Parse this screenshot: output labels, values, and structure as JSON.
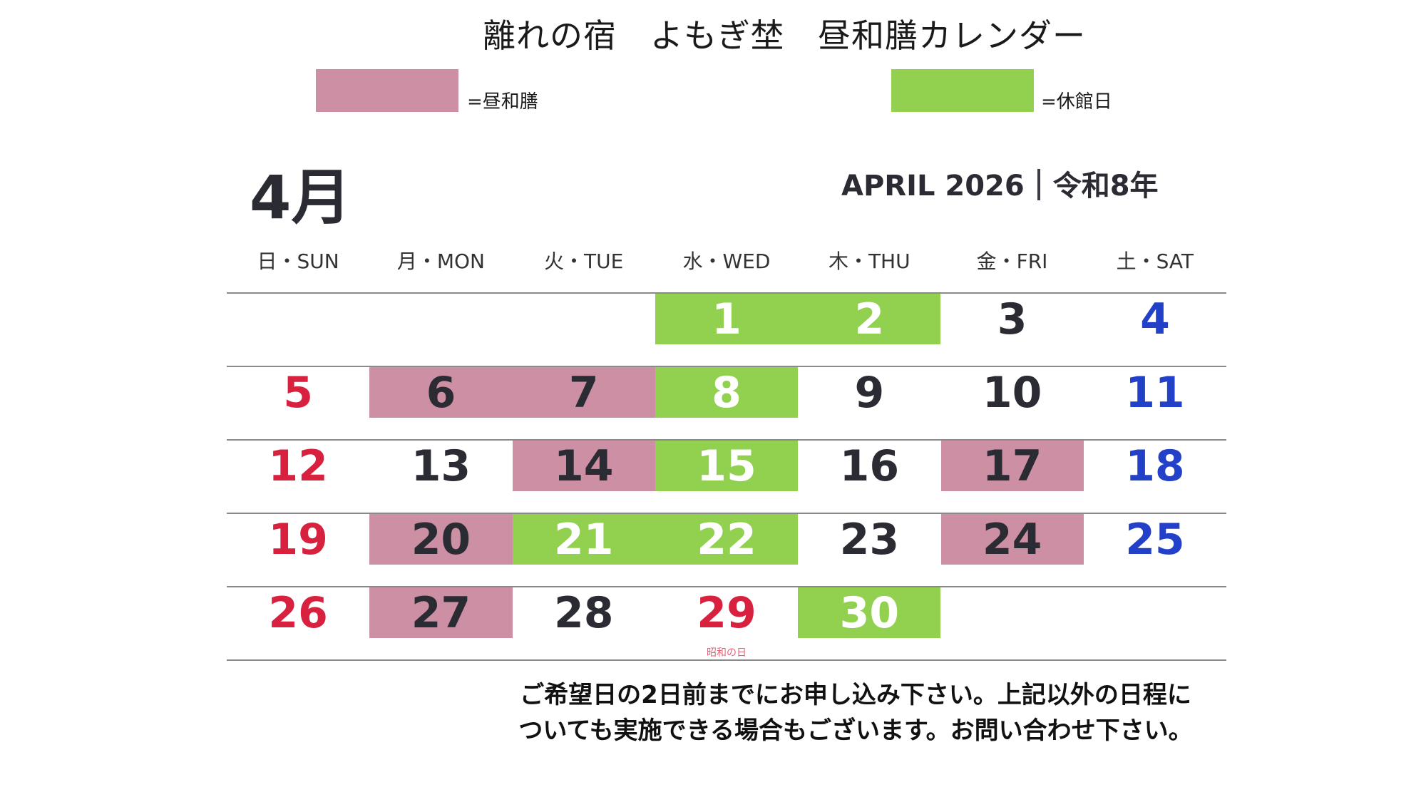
{
  "title": "離れの宿　よもぎ埜　昼和膳カレンダー",
  "legend": [
    {
      "label": "=昼和膳",
      "color": "#cd8fa3"
    },
    {
      "label": "=休館日",
      "color": "#92d050"
    }
  ],
  "month": {
    "big_label": "4月",
    "english": "APRIL 2026",
    "japanese_era": "令和8年"
  },
  "colors": {
    "lunch": "#cd8fa3",
    "closed": "#92d050",
    "sunday": "#d8203f",
    "saturday": "#2340c8",
    "weekday": "#2b2b33",
    "on_closed_text": "#ffffff"
  },
  "weekdays": [
    "日・SUN",
    "月・MON",
    "火・TUE",
    "水・WED",
    "木・THU",
    "金・FRI",
    "土・SAT"
  ],
  "weeks": [
    [
      null,
      null,
      null,
      {
        "day": "1",
        "type": "closed"
      },
      {
        "day": "2",
        "type": "closed"
      },
      {
        "day": "3",
        "type": "none"
      },
      {
        "day": "4",
        "type": "none"
      }
    ],
    [
      {
        "day": "5",
        "type": "none"
      },
      {
        "day": "6",
        "type": "lunch"
      },
      {
        "day": "7",
        "type": "lunch"
      },
      {
        "day": "8",
        "type": "closed"
      },
      {
        "day": "9",
        "type": "none"
      },
      {
        "day": "10",
        "type": "none"
      },
      {
        "day": "11",
        "type": "none"
      }
    ],
    [
      {
        "day": "12",
        "type": "none"
      },
      {
        "day": "13",
        "type": "none"
      },
      {
        "day": "14",
        "type": "lunch"
      },
      {
        "day": "15",
        "type": "closed"
      },
      {
        "day": "16",
        "type": "none"
      },
      {
        "day": "17",
        "type": "lunch"
      },
      {
        "day": "18",
        "type": "none"
      }
    ],
    [
      {
        "day": "19",
        "type": "none"
      },
      {
        "day": "20",
        "type": "lunch"
      },
      {
        "day": "21",
        "type": "closed"
      },
      {
        "day": "22",
        "type": "closed"
      },
      {
        "day": "23",
        "type": "none"
      },
      {
        "day": "24",
        "type": "lunch"
      },
      {
        "day": "25",
        "type": "none"
      }
    ],
    [
      {
        "day": "26",
        "type": "none"
      },
      {
        "day": "27",
        "type": "lunch"
      },
      {
        "day": "28",
        "type": "none"
      },
      {
        "day": "29",
        "type": "none",
        "holiday": true,
        "note": "昭和の日"
      },
      {
        "day": "30",
        "type": "closed"
      },
      null,
      null
    ]
  ],
  "footer": {
    "line1": "ご希望日の2日前までにお申し込み下さい。上記以外の日程に",
    "line2": "ついても実施できる場合もございます。お問い合わせ下さい。"
  }
}
